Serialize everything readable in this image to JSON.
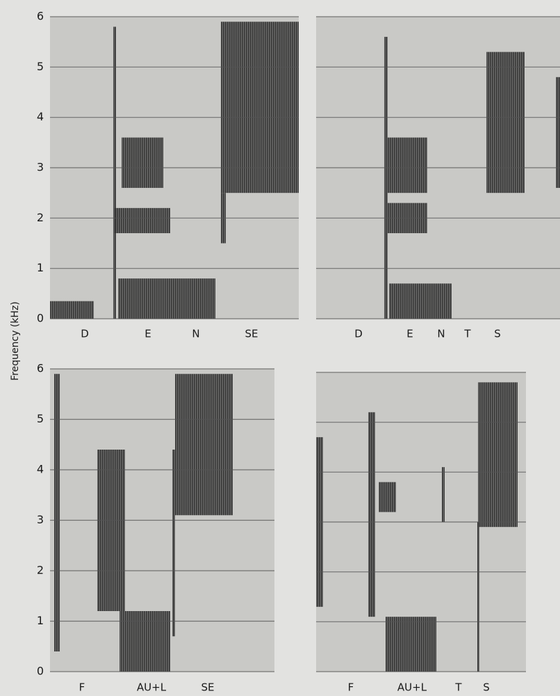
{
  "chart_data": [
    {
      "type": "spectrogram",
      "ylabel": "Frequency (kHz)",
      "ylim": [
        0,
        6
      ],
      "yticks": [
        0,
        1,
        2,
        3,
        4,
        5,
        6
      ],
      "segments": [
        "D",
        "E",
        "N",
        "SE"
      ]
    },
    {
      "type": "spectrogram",
      "ylim": [
        0,
        6
      ],
      "grid": true,
      "segments": [
        "D",
        "E",
        "N",
        "T",
        "S"
      ]
    },
    {
      "type": "spectrogram",
      "ylim": [
        0,
        6
      ],
      "yticks": [
        0,
        1,
        2,
        3,
        4,
        5,
        6
      ],
      "segments": [
        "F",
        "AU+L",
        "SE"
      ]
    },
    {
      "type": "spectrogram",
      "ylim": [
        0,
        6
      ],
      "grid": true,
      "segments": [
        "F",
        "AU+L",
        "T",
        "S"
      ]
    }
  ]
}
